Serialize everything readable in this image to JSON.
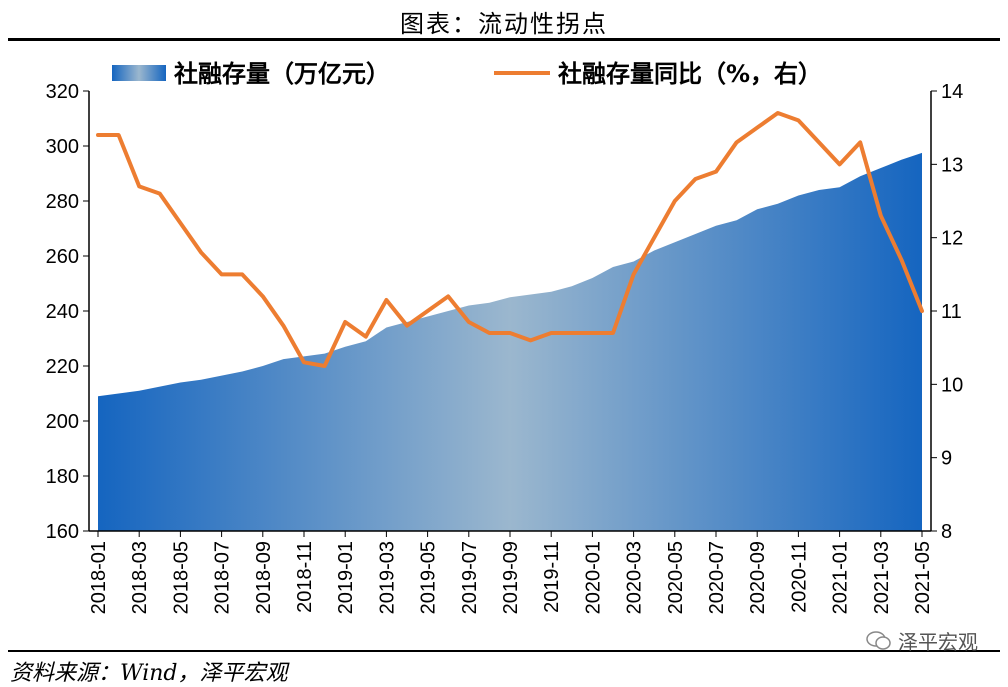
{
  "header": {
    "title": "图表：流动性拐点"
  },
  "footer": {
    "source": "资料来源：Wind，泽平宏观",
    "watermark": "泽平宏观"
  },
  "colors": {
    "area_dark": "#1565C0",
    "area_light": "#9BB7CE",
    "line": "#ED7D31",
    "axis": "#000000"
  },
  "chart_data": {
    "type": "area",
    "title": "",
    "legend": [
      "社融存量（万亿元）",
      "社融存量同比（%，右）"
    ],
    "legend_position": "top",
    "grid": false,
    "x_ticks": [
      "2018-01",
      "2018-03",
      "2018-05",
      "2018-07",
      "2018-09",
      "2018-11",
      "2019-01",
      "2019-03",
      "2019-05",
      "2019-07",
      "2019-09",
      "2019-11",
      "2020-01",
      "2020-03",
      "2020-05",
      "2020-07",
      "2020-09",
      "2020-11",
      "2021-01",
      "2021-03",
      "2021-05"
    ],
    "x": [
      "2018-01",
      "2018-02",
      "2018-03",
      "2018-04",
      "2018-05",
      "2018-06",
      "2018-07",
      "2018-08",
      "2018-09",
      "2018-10",
      "2018-11",
      "2018-12",
      "2019-01",
      "2019-02",
      "2019-03",
      "2019-04",
      "2019-05",
      "2019-06",
      "2019-07",
      "2019-08",
      "2019-09",
      "2019-10",
      "2019-11",
      "2019-12",
      "2020-01",
      "2020-02",
      "2020-03",
      "2020-04",
      "2020-05",
      "2020-06",
      "2020-07",
      "2020-08",
      "2020-09",
      "2020-10",
      "2020-11",
      "2020-12",
      "2021-01",
      "2021-02",
      "2021-03",
      "2021-04",
      "2021-05"
    ],
    "y_left": {
      "min": 160,
      "max": 320,
      "ticks": [
        160,
        180,
        200,
        220,
        240,
        260,
        280,
        300,
        320
      ]
    },
    "y_right": {
      "min": 8,
      "max": 14,
      "ticks": [
        8,
        9,
        10,
        11,
        12,
        13,
        14
      ]
    },
    "series": [
      {
        "name": "社融存量（万亿元）",
        "axis": "left",
        "type": "area",
        "values": [
          209,
          210,
          211,
          212.5,
          214,
          215,
          216.5,
          218,
          220,
          222.5,
          223.5,
          224.5,
          227,
          229,
          234,
          236,
          238,
          240,
          242,
          243,
          245,
          246,
          247,
          249,
          252,
          256,
          258,
          262,
          265,
          268,
          271,
          273,
          277,
          279,
          282,
          284,
          285,
          289,
          292,
          295,
          297.5
        ]
      },
      {
        "name": "社融存量同比（%，右）",
        "axis": "right",
        "type": "line",
        "values": [
          13.4,
          13.4,
          12.7,
          12.6,
          12.2,
          11.8,
          11.5,
          11.5,
          11.2,
          10.8,
          10.3,
          10.25,
          10.85,
          10.65,
          11.15,
          10.8,
          11.0,
          11.2,
          10.85,
          10.7,
          10.7,
          10.6,
          10.7,
          10.7,
          10.7,
          10.7,
          11.5,
          12.0,
          12.5,
          12.8,
          12.9,
          13.3,
          13.5,
          13.7,
          13.6,
          13.3,
          13.0,
          13.3,
          12.3,
          11.7,
          11.0
        ]
      }
    ]
  }
}
